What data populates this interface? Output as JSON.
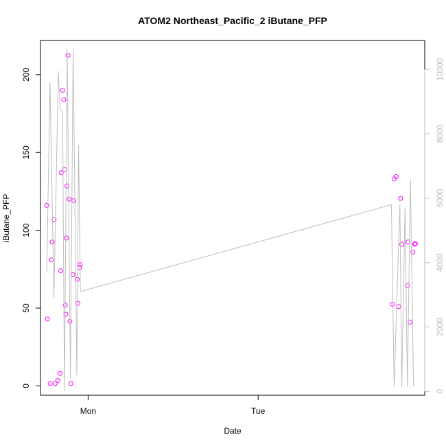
{
  "chart_data": {
    "type": "scatter",
    "title": "ATOM2 Northeast_Pacific_2 iButane_PFP",
    "xlabel": "Date",
    "ylabel": "iButane_PFP",
    "x_ticks": [
      {
        "label": "Mon",
        "value": 1.0
      },
      {
        "label": "Tue",
        "value": 2.0
      }
    ],
    "xlim": [
      0.72,
      2.98
    ],
    "ylim_left": [
      -6,
      222
    ],
    "ylim_right": [
      -120,
      10900
    ],
    "yticks_left": [
      0,
      50,
      100,
      150,
      200
    ],
    "yticks_right": [
      0,
      2000,
      4000,
      6000,
      8000,
      10000
    ],
    "grid": false,
    "colors": {
      "points": "#ff00ff",
      "line": "#bebebe",
      "axis": "#000000",
      "right_axis": "#bebebe"
    },
    "series": [
      {
        "axis": "left",
        "marker": "open-circle",
        "points": [
          [
            0.757,
            116
          ],
          [
            0.761,
            43
          ],
          [
            0.777,
            1.5
          ],
          [
            0.785,
            81
          ],
          [
            0.789,
            92.5
          ],
          [
            0.8,
            107
          ],
          [
            0.806,
            1.5
          ],
          [
            0.822,
            3.5
          ],
          [
            0.836,
            8
          ],
          [
            0.839,
            74
          ],
          [
            0.842,
            137
          ],
          [
            0.85,
            190
          ],
          [
            0.857,
            184
          ],
          [
            0.862,
            139
          ],
          [
            0.866,
            52
          ],
          [
            0.869,
            46
          ],
          [
            0.872,
            95
          ],
          [
            0.876,
            128.5
          ],
          [
            0.882,
            212.5
          ],
          [
            0.889,
            120
          ],
          [
            0.893,
            41.5
          ],
          [
            0.899,
            1.5
          ],
          [
            0.911,
            71.5
          ],
          [
            0.916,
            119
          ],
          [
            0.936,
            68.5
          ],
          [
            0.94,
            53
          ],
          [
            0.95,
            76
          ],
          [
            0.953,
            78
          ],
          [
            2.79,
            52.5
          ],
          [
            2.8,
            133
          ],
          [
            2.812,
            134.5
          ],
          [
            2.827,
            51
          ],
          [
            2.838,
            120.5
          ],
          [
            2.845,
            91
          ],
          [
            2.878,
            64.5
          ],
          [
            2.882,
            92.5
          ],
          [
            2.893,
            41
          ],
          [
            2.91,
            86
          ],
          [
            2.921,
            91
          ],
          [
            2.925,
            91.5
          ]
        ]
      },
      {
        "axis": "right",
        "style": "line",
        "points": [
          [
            0.757,
            3700
          ],
          [
            0.776,
            9600
          ],
          [
            0.799,
            2900
          ],
          [
            0.825,
            9950
          ],
          [
            0.836,
            8750
          ],
          [
            0.85,
            8700
          ],
          [
            0.861,
            0
          ],
          [
            0.877,
            10600
          ],
          [
            0.896,
            400
          ],
          [
            0.912,
            10650
          ],
          [
            0.934,
            500
          ],
          [
            0.944,
            7650
          ],
          [
            0.955,
            3100
          ],
          [
            2.784,
            5800
          ],
          [
            2.8,
            150
          ],
          [
            2.834,
            5800
          ],
          [
            2.845,
            150
          ],
          [
            2.864,
            5700
          ],
          [
            2.878,
            150
          ],
          [
            2.896,
            6600
          ],
          [
            2.914,
            150
          ]
        ]
      }
    ]
  }
}
